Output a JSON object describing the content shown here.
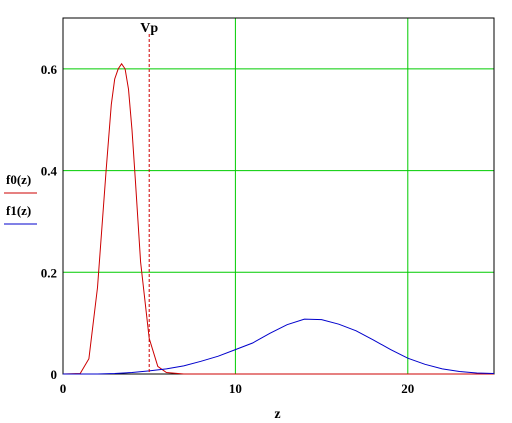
{
  "chart_data": {
    "type": "line",
    "xlabel": "z",
    "ylabel": "",
    "xlim": [
      0,
      25
    ],
    "ylim": [
      0,
      0.7
    ],
    "x_ticks": [
      0,
      10,
      20
    ],
    "y_ticks": [
      0,
      0.2,
      0.4,
      0.6
    ],
    "y_tick_labels": [
      "0",
      "0.2",
      "0.4",
      "0.6"
    ],
    "grid": true,
    "grid_color": "#00cc00",
    "legend_placement": "left",
    "series": [
      {
        "name": "f0(z)",
        "color": "#cc0000",
        "x": [
          0,
          1.0,
          1.5,
          2.0,
          2.5,
          2.8,
          3.0,
          3.2,
          3.4,
          3.6,
          3.8,
          4.0,
          4.2,
          4.5,
          5.0,
          5.5,
          6.0,
          7.0,
          10.0,
          15.0,
          20.0,
          25.0
        ],
        "y": [
          0,
          0.001,
          0.03,
          0.17,
          0.4,
          0.53,
          0.58,
          0.6,
          0.61,
          0.6,
          0.56,
          0.48,
          0.38,
          0.22,
          0.07,
          0.015,
          0.003,
          0.0,
          0.0,
          0.0,
          0.0,
          0.0
        ]
      },
      {
        "name": "f1(z)",
        "color": "#0000cc",
        "x": [
          0,
          2,
          3,
          4,
          5,
          6,
          7,
          8,
          9,
          10,
          11,
          12,
          13,
          14,
          15,
          16,
          17,
          18,
          19,
          20,
          21,
          22,
          23,
          24,
          25
        ],
        "y": [
          0,
          0.0,
          0.001,
          0.003,
          0.006,
          0.01,
          0.016,
          0.025,
          0.035,
          0.048,
          0.061,
          0.08,
          0.097,
          0.108,
          0.107,
          0.098,
          0.085,
          0.067,
          0.048,
          0.031,
          0.019,
          0.01,
          0.005,
          0.002,
          0.001
        ]
      }
    ],
    "markers": [
      {
        "label": "Vp",
        "x": 5,
        "color": "#cc0000",
        "style": "dashed"
      }
    ]
  }
}
